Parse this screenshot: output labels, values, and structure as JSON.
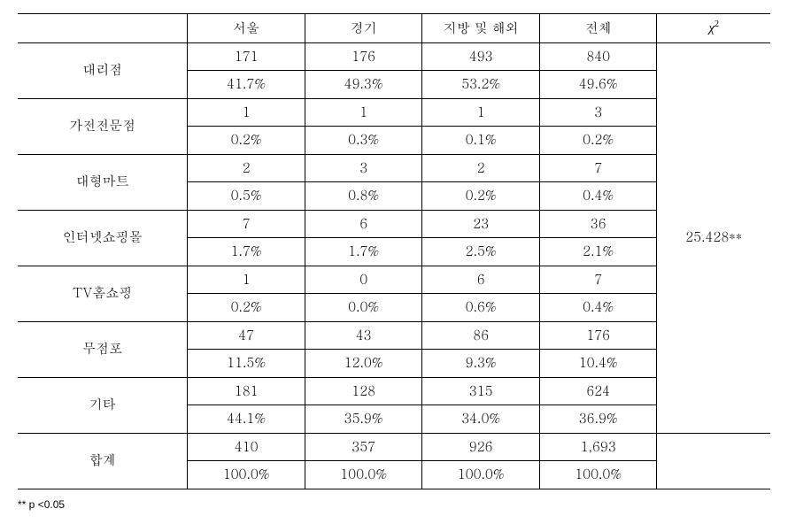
{
  "table": {
    "headers": {
      "seoul": "서울",
      "gyeonggi": "경기",
      "other": "지방 및 해외",
      "total": "전체",
      "chi": "χ",
      "chi_sup": "2"
    },
    "rows": [
      {
        "label": "대리점",
        "count": {
          "seoul": "171",
          "gyeonggi": "176",
          "other": "493",
          "total": "840"
        },
        "pct": {
          "seoul": "41.7%",
          "gyeonggi": "49.3%",
          "other": "53.2%",
          "total": "49.6%"
        }
      },
      {
        "label": "가전전문점",
        "count": {
          "seoul": "1",
          "gyeonggi": "1",
          "other": "1",
          "total": "3"
        },
        "pct": {
          "seoul": "0.2%",
          "gyeonggi": "0.3%",
          "other": "0.1%",
          "total": "0.2%"
        }
      },
      {
        "label": "대형마트",
        "count": {
          "seoul": "2",
          "gyeonggi": "3",
          "other": "2",
          "total": "7"
        },
        "pct": {
          "seoul": "0.5%",
          "gyeonggi": "0.8%",
          "other": "0.2%",
          "total": "0.4%"
        }
      },
      {
        "label": "인터넷쇼핑몰",
        "count": {
          "seoul": "7",
          "gyeonggi": "6",
          "other": "23",
          "total": "36"
        },
        "pct": {
          "seoul": "1.7%",
          "gyeonggi": "1.7%",
          "other": "2.5%",
          "total": "2.1%"
        }
      },
      {
        "label": "TV홈쇼핑",
        "count": {
          "seoul": "1",
          "gyeonggi": "0",
          "other": "6",
          "total": "7"
        },
        "pct": {
          "seoul": "0.2%",
          "gyeonggi": "0.0%",
          "other": "0.6%",
          "total": "0.4%"
        }
      },
      {
        "label": "무점포",
        "count": {
          "seoul": "47",
          "gyeonggi": "43",
          "other": "86",
          "total": "176"
        },
        "pct": {
          "seoul": "11.5%",
          "gyeonggi": "12.0%",
          "other": "9.3%",
          "total": "10.4%"
        }
      },
      {
        "label": "기타",
        "count": {
          "seoul": "181",
          "gyeonggi": "128",
          "other": "315",
          "total": "624"
        },
        "pct": {
          "seoul": "44.1%",
          "gyeonggi": "35.9%",
          "other": "34.0%",
          "total": "36.9%"
        }
      },
      {
        "label": "합계",
        "count": {
          "seoul": "410",
          "gyeonggi": "357",
          "other": "926",
          "total": "1,693"
        },
        "pct": {
          "seoul": "100.0%",
          "gyeonggi": "100.0%",
          "other": "100.0%",
          "total": "100.0%"
        }
      }
    ],
    "chi_value": "25.428**",
    "footnote": "** p <0.05"
  },
  "style": {
    "border_color": "#000000",
    "background_color": "#ffffff",
    "text_color": "#000000",
    "font_family": "Batang, 바탕, serif",
    "font_size_body": 15,
    "font_size_footnote": 12,
    "thick_border_width": 1.5,
    "thin_border_width": 1
  }
}
